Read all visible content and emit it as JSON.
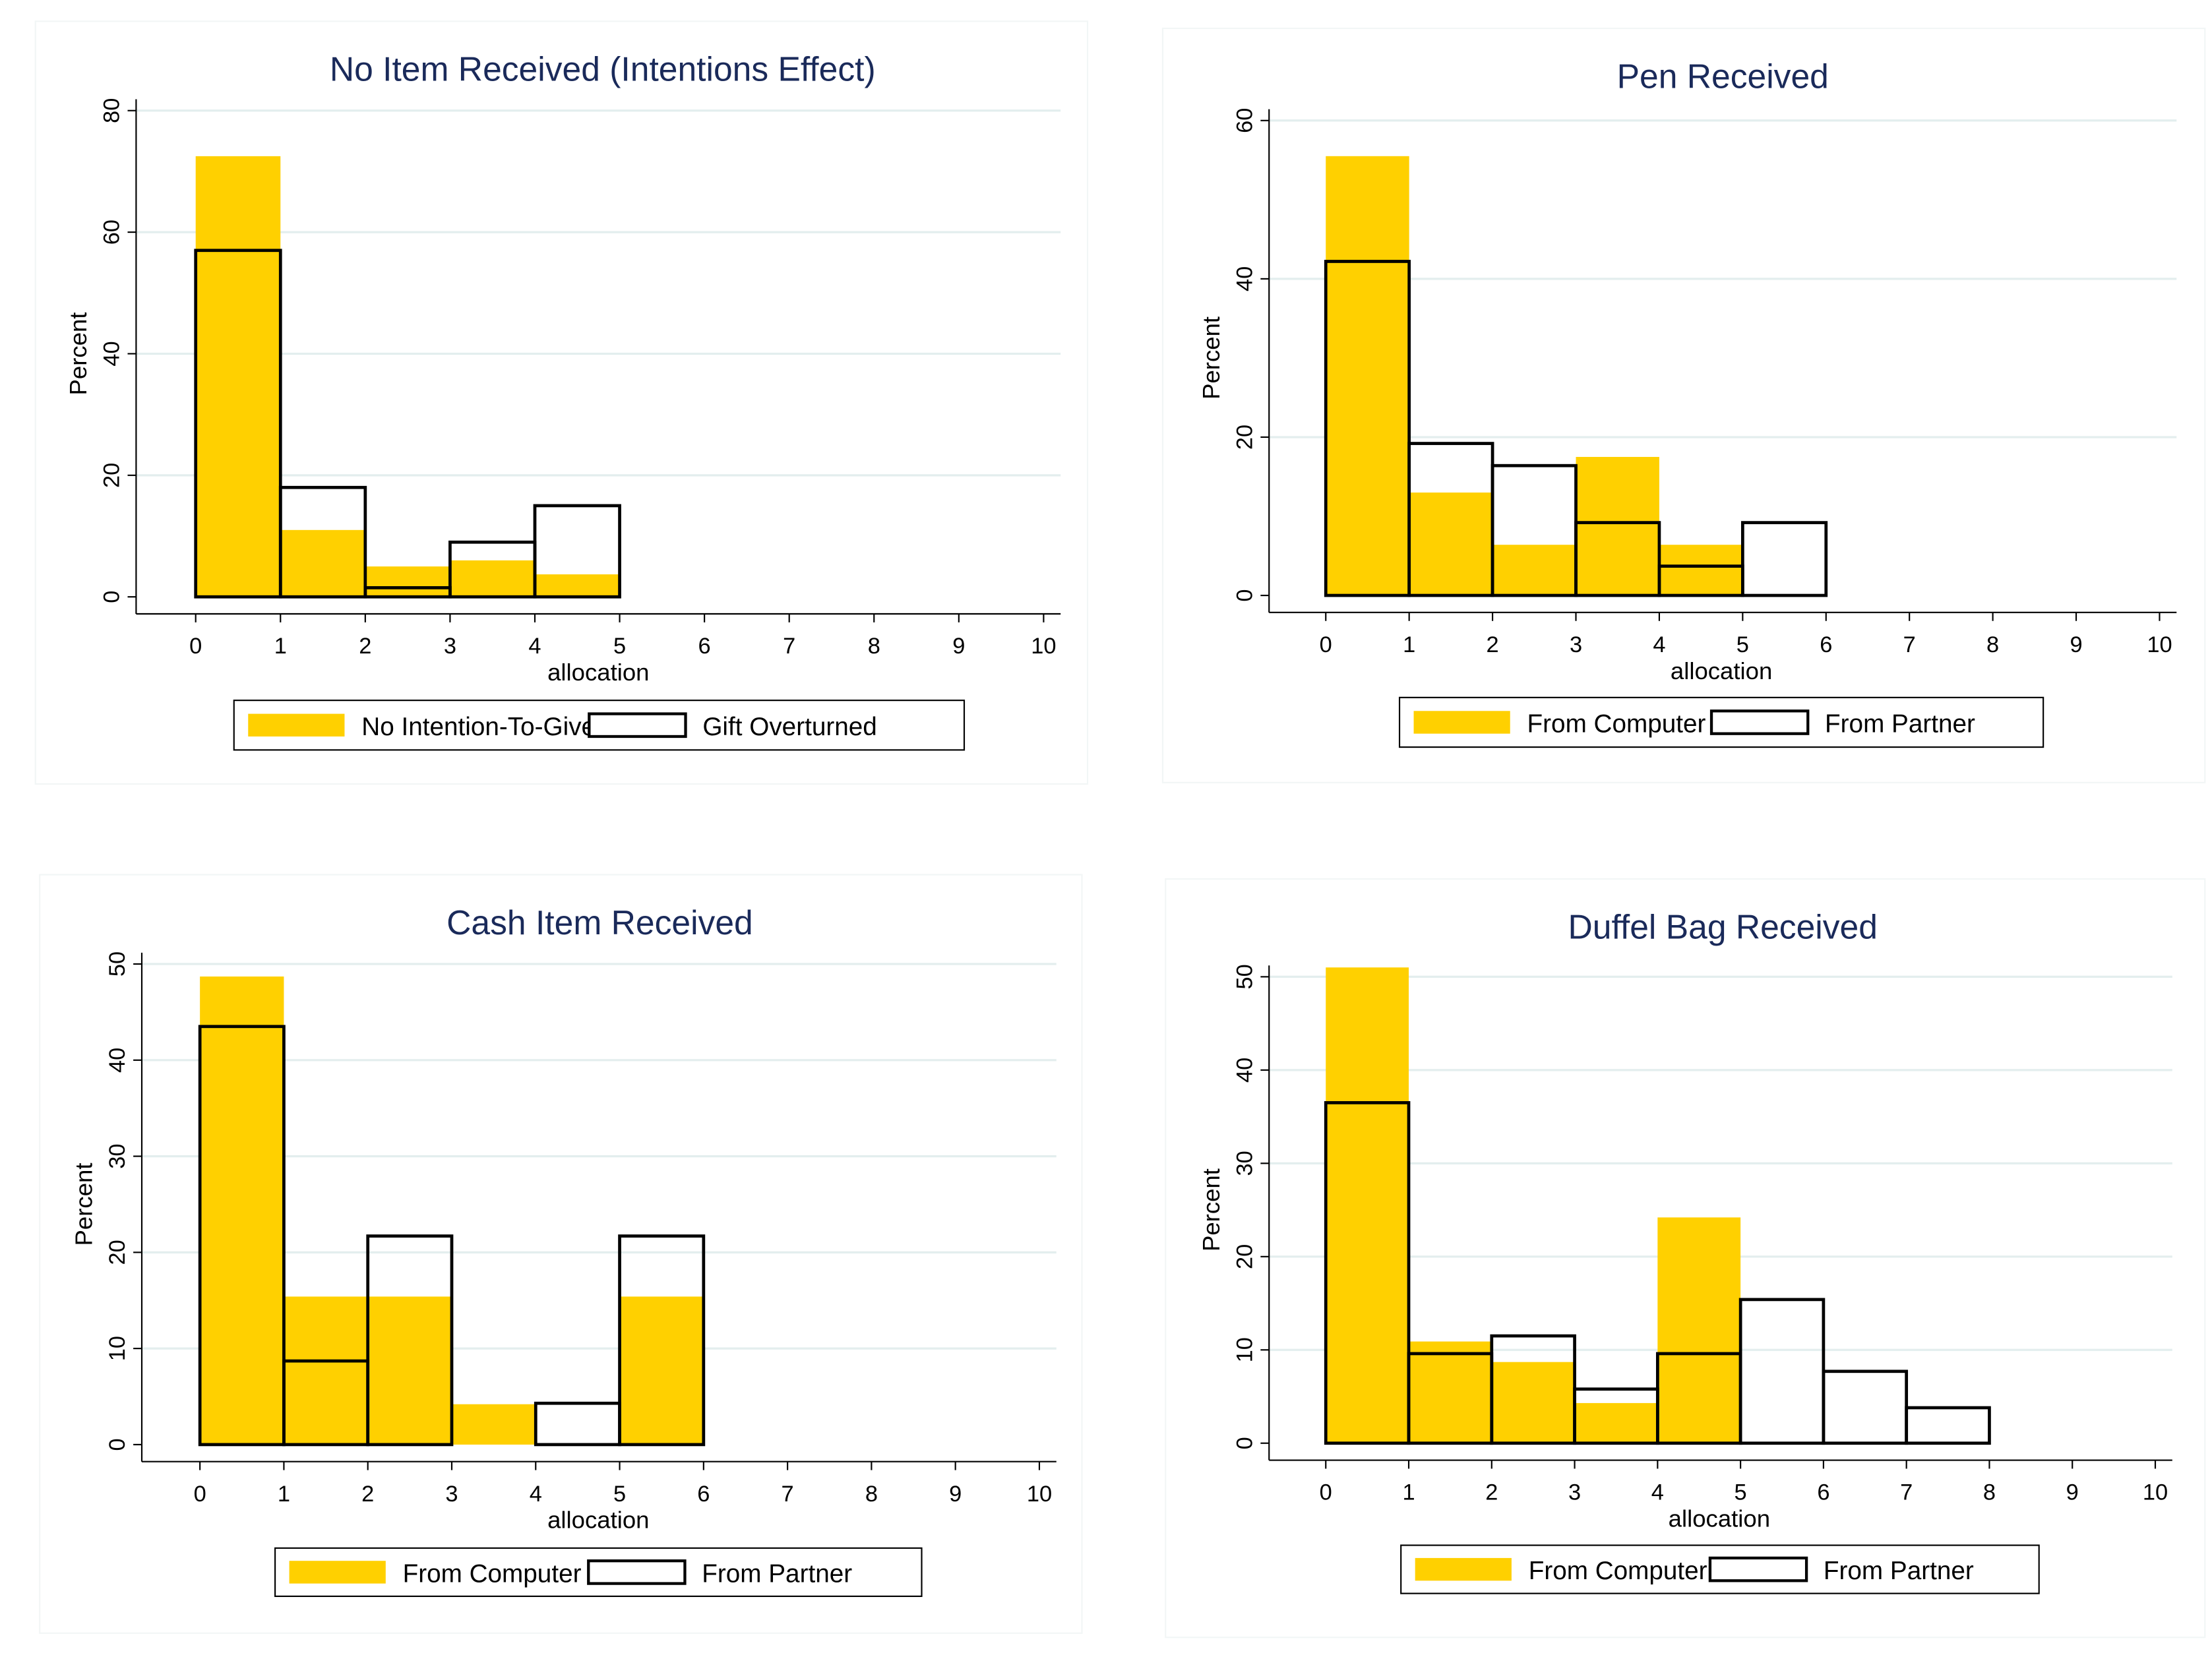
{
  "colors": {
    "computer": "#FFD000",
    "partner_stroke": "#000000",
    "grid": "#E3EEEE"
  },
  "chart_data": [
    {
      "type": "bar",
      "title": "No Item Received (Intentions Effect)",
      "xlabel": "allocation",
      "ylabel": "Percent",
      "xlim": [
        0,
        10
      ],
      "ylim": [
        0,
        80
      ],
      "yticks": [
        0,
        20,
        40,
        60,
        80
      ],
      "xticks": [
        0,
        1,
        2,
        3,
        4,
        5,
        6,
        7,
        8,
        9,
        10
      ],
      "bin_width": 1,
      "legend_position": "bottom",
      "series": [
        {
          "name": "No Intention-To-Give",
          "style": "filled",
          "values": [
            72.5,
            11,
            5,
            6,
            3.7,
            0,
            0,
            0,
            0,
            0
          ]
        },
        {
          "name": "Gift Overturned",
          "style": "outline",
          "values": [
            57,
            18,
            1.5,
            9,
            15,
            0,
            0,
            0,
            0,
            0
          ]
        }
      ]
    },
    {
      "type": "bar",
      "title": "Pen Received",
      "xlabel": "allocation",
      "ylabel": "Percent",
      "xlim": [
        0,
        10
      ],
      "ylim": [
        0,
        60
      ],
      "yticks": [
        0,
        20,
        40,
        60
      ],
      "xticks": [
        0,
        1,
        2,
        3,
        4,
        5,
        6,
        7,
        8,
        9,
        10
      ],
      "bin_width": 1,
      "legend_position": "bottom",
      "series": [
        {
          "name": "From Computer",
          "style": "filled",
          "values": [
            55.5,
            13,
            6.4,
            17.5,
            6.4,
            0,
            0,
            0,
            0,
            0
          ]
        },
        {
          "name": "From Partner",
          "style": "outline",
          "values": [
            42.2,
            19.2,
            16.4,
            9.2,
            3.7,
            9.2,
            0,
            0,
            0,
            0
          ]
        }
      ]
    },
    {
      "type": "bar",
      "title": "Cash Item Received",
      "xlabel": "allocation",
      "ylabel": "Percent",
      "xlim": [
        0,
        10
      ],
      "ylim": [
        0,
        50
      ],
      "yticks": [
        0,
        10,
        20,
        30,
        40,
        50
      ],
      "xticks": [
        0,
        1,
        2,
        3,
        4,
        5,
        6,
        7,
        8,
        9,
        10
      ],
      "bin_width": 1,
      "legend_position": "bottom",
      "series": [
        {
          "name": "From Computer",
          "style": "filled",
          "values": [
            48.7,
            15.4,
            15.4,
            4.2,
            0,
            15.4,
            0,
            0,
            0,
            0
          ]
        },
        {
          "name": "From Partner",
          "style": "outline",
          "values": [
            43.5,
            8.7,
            21.7,
            0,
            4.3,
            21.7,
            0,
            0,
            0,
            0
          ]
        }
      ]
    },
    {
      "type": "bar",
      "title": "Duffel Bag Received",
      "xlabel": "allocation",
      "ylabel": "Percent",
      "xlim": [
        0,
        10
      ],
      "ylim": [
        0,
        50
      ],
      "yticks": [
        0,
        10,
        20,
        30,
        40,
        50
      ],
      "xticks": [
        0,
        1,
        2,
        3,
        4,
        5,
        6,
        7,
        8,
        9,
        10
      ],
      "bin_width": 1,
      "legend_position": "bottom",
      "series": [
        {
          "name": "From Computer",
          "style": "filled",
          "values": [
            51,
            10.9,
            8.7,
            4.3,
            24.2,
            0,
            0,
            0,
            0,
            0
          ]
        },
        {
          "name": "From Partner",
          "style": "outline",
          "values": [
            36.5,
            9.6,
            11.5,
            5.8,
            9.6,
            15.4,
            7.7,
            3.8,
            0,
            0
          ]
        }
      ]
    }
  ]
}
